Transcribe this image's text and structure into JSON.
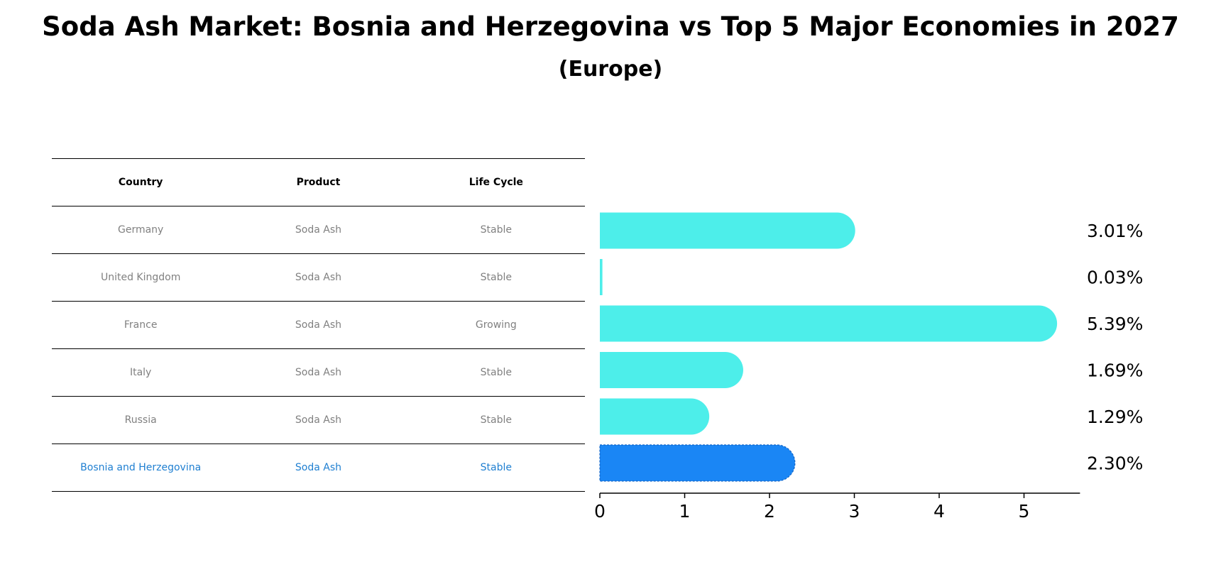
{
  "title": "Soda Ash Market: Bosnia and Herzegovina vs Top 5 Major Economies in 2027",
  "subtitle": "(Europe)",
  "table": {
    "headers": [
      "Country",
      "Product",
      "Life Cycle"
    ],
    "rows": [
      {
        "country": "Germany",
        "product": "Soda Ash",
        "life_cycle": "Stable",
        "highlight": false
      },
      {
        "country": "United Kingdom",
        "product": "Soda Ash",
        "life_cycle": "Stable",
        "highlight": false
      },
      {
        "country": "France",
        "product": "Soda Ash",
        "life_cycle": "Growing",
        "highlight": false
      },
      {
        "country": "Italy",
        "product": "Soda Ash",
        "life_cycle": "Stable",
        "highlight": false
      },
      {
        "country": "Russia",
        "product": "Soda Ash",
        "life_cycle": "Stable",
        "highlight": false
      },
      {
        "country": "Bosnia and Herzegovina",
        "product": "Soda Ash",
        "life_cycle": "Stable",
        "highlight": true
      }
    ]
  },
  "chart_data": {
    "type": "bar",
    "orientation": "horizontal",
    "categories": [
      "Germany",
      "United Kingdom",
      "France",
      "Italy",
      "Russia",
      "Bosnia and Herzegovina"
    ],
    "values": [
      3.01,
      0.03,
      5.39,
      1.69,
      1.29,
      2.3
    ],
    "value_labels": [
      "3.01%",
      "0.03%",
      "5.39%",
      "1.69%",
      "1.29%",
      "2.30%"
    ],
    "highlight_index": 5,
    "xlim": [
      0,
      5.66
    ],
    "xticks": [
      0,
      1,
      2,
      3,
      4,
      5
    ],
    "grid": false,
    "colors": {
      "bar": "#4deeea",
      "highlight": "#1a86f5",
      "highlight_text": "#1f7fd1",
      "muted_text": "#808080"
    }
  }
}
